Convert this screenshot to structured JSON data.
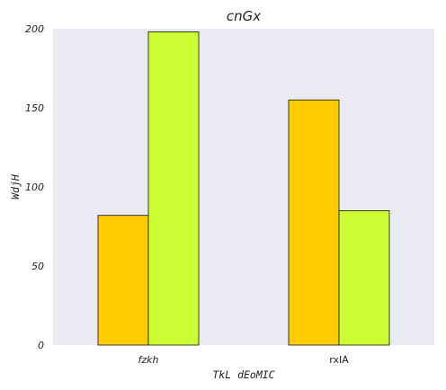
{
  "chart_data": {
    "type": "bar",
    "title": "cnGx",
    "xlabel": "TkL dEoMIC",
    "ylabel": "WdjH",
    "categories": [
      "fzkh",
      "rxIA"
    ],
    "series": [
      {
        "values": [
          82,
          155
        ],
        "color": "#ffcc00"
      },
      {
        "values": [
          198,
          85
        ],
        "color": "#ccff33"
      }
    ],
    "ylim": [
      0,
      200
    ],
    "yticks": [
      0,
      50,
      100,
      150,
      200
    ],
    "grid": false,
    "background": "#eaeaf2"
  }
}
